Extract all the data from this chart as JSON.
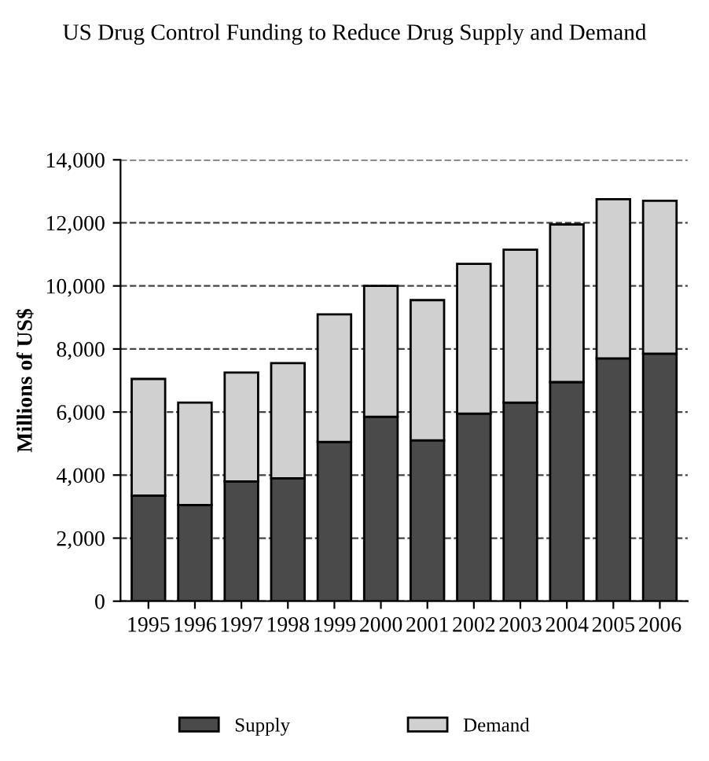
{
  "chart_data": {
    "type": "bar",
    "stacked": true,
    "title": "US Drug Control Funding to Reduce Drug Supply and Demand",
    "ylabel": "Millions of US$",
    "categories": [
      "1995",
      "1996",
      "1997",
      "1998",
      "1999",
      "2000",
      "2001",
      "2002",
      "2003",
      "2004",
      "2005",
      "2006"
    ],
    "series": [
      {
        "name": "Supply",
        "color": "#4a4a4a",
        "values": [
          3350,
          3050,
          3800,
          3900,
          5050,
          5850,
          5100,
          5950,
          6300,
          6950,
          7700,
          7850
        ]
      },
      {
        "name": "Demand",
        "color": "#d0d0d0",
        "values": [
          3700,
          3250,
          3450,
          3650,
          4050,
          4150,
          4450,
          4750,
          4850,
          5000,
          5050,
          4850
        ]
      }
    ],
    "ylim": [
      0,
      14000
    ],
    "yticks": [
      {
        "value": 0,
        "label": "0"
      },
      {
        "value": 2000,
        "label": "2,000"
      },
      {
        "value": 4000,
        "label": "4,000"
      },
      {
        "value": 6000,
        "label": "6,000"
      },
      {
        "value": 8000,
        "label": "8,000"
      },
      {
        "value": 10000,
        "label": "10,000"
      },
      {
        "value": 12000,
        "label": "12,000"
      },
      {
        "value": 14000,
        "label": "14,000"
      }
    ],
    "grid": "y",
    "legend": "bottom"
  }
}
